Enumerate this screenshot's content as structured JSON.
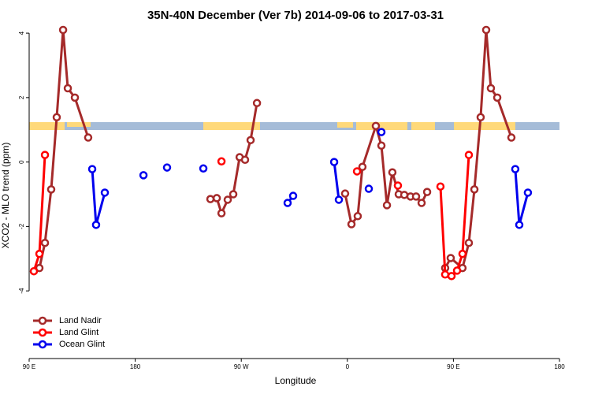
{
  "chart_data": {
    "type": "line",
    "title": "35N-40N December (Ver 7b)   2014-09-06 to 2017-03-31",
    "x_label": "Longitude",
    "y_label": "XCO2 - MLO trend (ppm)",
    "xlim": [
      90,
      540
    ],
    "xticks": [
      {
        "value": 90,
        "label": "90 E"
      },
      180,
      {
        "value": 270,
        "label": "90 W"
      },
      {
        "value": 360,
        "label": "0"
      },
      {
        "value": 450,
        "label": "90 E"
      },
      {
        "value": 540,
        "label": "180"
      }
    ],
    "ylim": [
      -6.1,
      4.1
    ],
    "yticks": [
      4,
      2,
      0,
      -2,
      -4
    ],
    "legend": "bottom-left",
    "series": [
      {
        "name": "Land Nadir",
        "color": "#a52a2a",
        "x": [
          98.7,
          103.4,
          108.7,
          113.4,
          118.8,
          122.8,
          128.8,
          140.1,
          null,
          243.8,
          249.2,
          253.2,
          258.5,
          263.2,
          268.6,
          273.2,
          277.9,
          283.3,
          null,
          358.1,
          363.5,
          368.8,
          372.8,
          384.2,
          388.9,
          393.6,
          398.2,
          403.6,
          408.3,
          413.6,
          418.3,
          423.0,
          427.7,
          null,
          443.0,
          447.7,
          457.7,
          463.1,
          467.8,
          473.1,
          477.8,
          481.8,
          487.2,
          499.2
        ],
        "values": [
          -3.29,
          -2.51,
          -0.85,
          1.39,
          4.1,
          2.29,
          2.0,
          0.76,
          null,
          -1.15,
          -1.12,
          -1.59,
          -1.17,
          -1.0,
          0.15,
          0.07,
          0.68,
          1.83,
          null,
          -0.98,
          -1.93,
          -1.68,
          -0.15,
          1.12,
          0.51,
          -1.34,
          -0.32,
          -1.0,
          -1.02,
          -1.07,
          -1.07,
          -1.27,
          -0.93,
          null,
          -3.29,
          -2.98,
          -3.29,
          -2.51,
          -0.85,
          1.39,
          4.1,
          2.29,
          2.0,
          0.76
        ]
      },
      {
        "name": "Land Glint",
        "color": "#ff0000",
        "x": [
          94.0,
          98.7,
          103.4,
          null,
          253.2,
          null,
          368.2,
          null,
          402.9,
          null,
          439.0,
          443.0,
          448.4,
          453.1,
          457.7,
          463.1
        ],
        "values": [
          -3.39,
          -2.85,
          0.22,
          null,
          0.02,
          null,
          -0.29,
          null,
          -0.73,
          null,
          -0.76,
          -3.49,
          -3.54,
          -3.37,
          -2.85,
          0.22
        ]
      },
      {
        "name": "Ocean Glint",
        "color": "#0000ee",
        "x": [
          143.5,
          146.8,
          154.2,
          null,
          187.0,
          null,
          207.0,
          null,
          237.8,
          null,
          309.3,
          314.0,
          null,
          348.8,
          352.8,
          null,
          378.2,
          null,
          388.9,
          null,
          502.5,
          505.9,
          513.2
        ],
        "values": [
          -0.22,
          -1.95,
          -0.95,
          null,
          -0.41,
          null,
          -0.17,
          null,
          -0.2,
          null,
          -1.27,
          -1.05,
          null,
          0.0,
          -1.17,
          null,
          -0.83,
          null,
          0.93,
          null,
          -0.22,
          -1.95,
          -0.95
        ]
      }
    ]
  }
}
